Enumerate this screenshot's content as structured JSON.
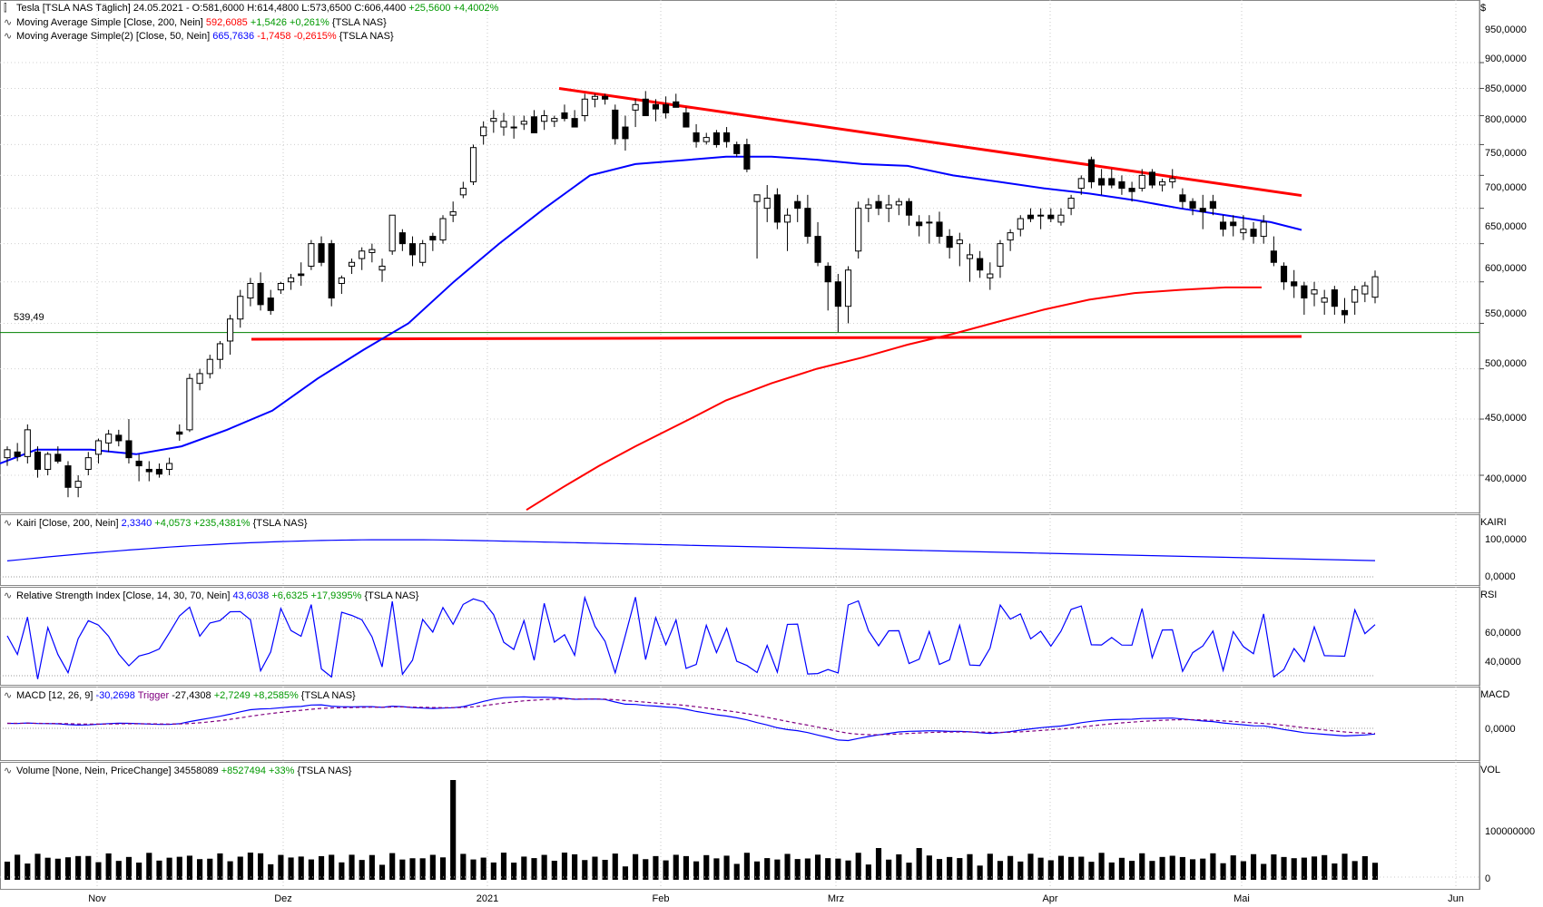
{
  "main_panel": {
    "legend": {
      "symbol": "Tesla",
      "descriptor": "[TSLA NAS  Täglich]",
      "date": "24.05.2021",
      "open": "O:581,6000",
      "high": "H:614,4800",
      "low": "L:573,6500",
      "close": "C:606,4400",
      "change": "+25,5600",
      "change_pct": "+4,4002%"
    },
    "ma200": {
      "label": "Moving Average Simple [Close, 200, Nein]",
      "value": "592,6085",
      "change": "+1,5426",
      "change_pct": "+0,261%",
      "suffix": "{TSLA NAS}"
    },
    "ma50": {
      "label": "Moving Average Simple(2) [Close, 50, Nein]",
      "value": "665,7636",
      "change": "-1,7458",
      "change_pct": "-0,2615%",
      "suffix": "{TSLA NAS}"
    },
    "support_label": "539,49",
    "currency": "$",
    "y_ticks": [
      "950,0000",
      "900,0000",
      "850,0000",
      "800,0000",
      "750,0000",
      "700,0000",
      "650,0000",
      "600,0000",
      "550,0000",
      "500,0000",
      "450,0000",
      "400,0000"
    ]
  },
  "kairi_panel": {
    "label": "Kairi [Close, 200, Nein]",
    "value": "2,3340",
    "change": "+4,0573",
    "change_pct": "+235,4381%",
    "suffix": "{TSLA NAS}",
    "title": "KAIRI",
    "y_ticks": [
      "100,0000",
      "0,0000"
    ]
  },
  "rsi_panel": {
    "label": "Relative Strength Index [Close, 14, 30, 70, Nein]",
    "value": "43,6038",
    "change": "+6,6325",
    "change_pct": "+17,9395%",
    "suffix": "{TSLA NAS}",
    "title": "RSI",
    "y_ticks": [
      "60,0000",
      "40,0000"
    ]
  },
  "macd_panel": {
    "label": "MACD [12, 26, 9]",
    "value": "-30,2698",
    "trigger_label": "Trigger",
    "trigger_value": "-27,4308",
    "change": "+2,7249",
    "change_pct": "+8,2585%",
    "suffix": "{TSLA NAS}",
    "title": "MACD",
    "y_ticks": [
      "0,0000"
    ]
  },
  "volume_panel": {
    "label": "Volume [None, Nein, PriceChange]",
    "value": "34558089",
    "change": "+8527494",
    "change_pct": "+33%",
    "suffix": "{TSLA NAS}",
    "title": "VOL",
    "y_ticks": [
      "100000000",
      "0"
    ]
  },
  "x_axis": {
    "labels": [
      "Nov",
      "Dez",
      "2021",
      "Feb",
      "Mrz",
      "Apr",
      "Mai",
      "Jun"
    ]
  },
  "colors": {
    "ma200": "#ff0000",
    "ma50": "#0000ff",
    "trendline": "#ff0000",
    "support": "#008000",
    "indicator": "#0000ff",
    "trigger": "#800080"
  },
  "chart_data": {
    "type": "candlestick",
    "y_scale": "log",
    "ylim": [
      370,
      985
    ],
    "support_level": 539.49,
    "x_ticks": [
      "Nov",
      "Dez",
      "2021",
      "Feb",
      "Mrz",
      "Apr",
      "Mai",
      "Jun"
    ],
    "ohlc": [
      [
        415,
        425,
        408,
        422
      ],
      [
        420,
        428,
        412,
        416
      ],
      [
        416,
        445,
        410,
        440
      ],
      [
        420,
        425,
        398,
        405
      ],
      [
        405,
        420,
        400,
        418
      ],
      [
        418,
        425,
        410,
        412
      ],
      [
        408,
        412,
        382,
        390
      ],
      [
        390,
        400,
        382,
        395
      ],
      [
        405,
        420,
        400,
        415
      ],
      [
        418,
        432,
        410,
        430
      ],
      [
        428,
        440,
        420,
        436
      ],
      [
        435,
        440,
        425,
        430
      ],
      [
        430,
        450,
        410,
        415
      ],
      [
        412,
        418,
        395,
        408
      ],
      [
        405,
        412,
        395,
        403
      ],
      [
        405,
        410,
        398,
        401
      ],
      [
        405,
        415,
        400,
        410
      ],
      [
        438,
        445,
        430,
        436
      ],
      [
        440,
        495,
        438,
        490
      ],
      [
        485,
        500,
        478,
        495
      ],
      [
        495,
        515,
        490,
        510
      ],
      [
        510,
        530,
        500,
        527
      ],
      [
        530,
        560,
        515,
        555
      ],
      [
        555,
        590,
        545,
        582
      ],
      [
        580,
        605,
        570,
        598
      ],
      [
        598,
        612,
        565,
        572
      ],
      [
        580,
        590,
        560,
        565
      ],
      [
        590,
        600,
        585,
        598
      ],
      [
        600,
        610,
        590,
        605
      ],
      [
        610,
        625,
        595,
        608
      ],
      [
        620,
        655,
        615,
        650
      ],
      [
        650,
        660,
        620,
        625
      ],
      [
        650,
        655,
        570,
        580
      ],
      [
        598,
        608,
        585,
        605
      ],
      [
        620,
        630,
        610,
        625
      ],
      [
        630,
        645,
        615,
        640
      ],
      [
        638,
        650,
        625,
        642
      ],
      [
        615,
        630,
        600,
        620
      ],
      [
        640,
        690,
        635,
        690
      ],
      [
        665,
        670,
        640,
        650
      ],
      [
        650,
        660,
        620,
        635
      ],
      [
        625,
        655,
        620,
        650
      ],
      [
        660,
        665,
        640,
        655
      ],
      [
        655,
        690,
        650,
        685
      ],
      [
        690,
        710,
        680,
        695
      ],
      [
        720,
        740,
        715,
        730
      ],
      [
        740,
        800,
        735,
        795
      ],
      [
        815,
        840,
        800,
        830
      ],
      [
        840,
        860,
        820,
        845
      ],
      [
        830,
        855,
        815,
        840
      ],
      [
        830,
        850,
        810,
        830
      ],
      [
        835,
        850,
        825,
        840
      ],
      [
        848,
        860,
        820,
        820
      ],
      [
        840,
        860,
        825,
        850
      ],
      [
        840,
        850,
        830,
        845
      ],
      [
        855,
        870,
        840,
        845
      ],
      [
        845,
        860,
        830,
        830
      ],
      [
        850,
        890,
        840,
        880
      ],
      [
        880,
        890,
        865,
        885
      ],
      [
        885,
        890,
        870,
        880
      ],
      [
        860,
        870,
        800,
        810
      ],
      [
        830,
        850,
        790,
        810
      ],
      [
        860,
        880,
        830,
        870
      ],
      [
        880,
        895,
        850,
        850
      ],
      [
        870,
        880,
        840,
        862
      ],
      [
        870,
        885,
        845,
        855
      ],
      [
        875,
        890,
        865,
        865
      ],
      [
        855,
        865,
        830,
        830
      ],
      [
        820,
        835,
        795,
        805
      ],
      [
        805,
        820,
        800,
        812
      ],
      [
        820,
        825,
        795,
        800
      ],
      [
        820,
        830,
        795,
        805
      ],
      [
        800,
        805,
        780,
        785
      ],
      [
        800,
        810,
        755,
        760
      ],
      [
        710,
        720,
        630,
        720
      ],
      [
        700,
        735,
        680,
        715
      ],
      [
        720,
        730,
        670,
        680
      ],
      [
        680,
        700,
        640,
        690
      ],
      [
        710,
        720,
        680,
        700
      ],
      [
        700,
        720,
        650,
        660
      ],
      [
        660,
        680,
        620,
        625
      ],
      [
        620,
        625,
        565,
        600
      ],
      [
        600,
        610,
        540,
        570
      ],
      [
        570,
        620,
        550,
        615
      ],
      [
        640,
        710,
        630,
        700
      ],
      [
        700,
        715,
        680,
        705
      ],
      [
        710,
        720,
        690,
        700
      ],
      [
        700,
        720,
        680,
        705
      ],
      [
        705,
        715,
        690,
        710
      ],
      [
        710,
        715,
        675,
        690
      ],
      [
        680,
        690,
        660,
        675
      ],
      [
        680,
        690,
        650,
        680
      ],
      [
        680,
        695,
        650,
        660
      ],
      [
        660,
        670,
        630,
        645
      ],
      [
        650,
        665,
        620,
        655
      ],
      [
        630,
        650,
        600,
        635
      ],
      [
        630,
        640,
        605,
        615
      ],
      [
        605,
        625,
        590,
        610
      ],
      [
        620,
        655,
        605,
        650
      ],
      [
        655,
        670,
        640,
        665
      ],
      [
        670,
        690,
        660,
        685
      ],
      [
        690,
        700,
        680,
        685
      ],
      [
        690,
        700,
        670,
        690
      ],
      [
        690,
        700,
        680,
        685
      ],
      [
        680,
        700,
        675,
        690
      ],
      [
        700,
        720,
        690,
        715
      ],
      [
        730,
        750,
        720,
        745
      ],
      [
        775,
        780,
        730,
        740
      ],
      [
        745,
        760,
        720,
        735
      ],
      [
        745,
        760,
        730,
        735
      ],
      [
        740,
        750,
        720,
        730
      ],
      [
        730,
        740,
        710,
        725
      ],
      [
        730,
        760,
        725,
        750
      ],
      [
        755,
        760,
        730,
        735
      ],
      [
        735,
        745,
        725,
        740
      ],
      [
        740,
        760,
        730,
        745
      ],
      [
        720,
        730,
        700,
        710
      ],
      [
        710,
        715,
        690,
        700
      ],
      [
        700,
        720,
        670,
        695
      ],
      [
        710,
        720,
        690,
        700
      ],
      [
        680,
        690,
        660,
        670
      ],
      [
        680,
        690,
        660,
        675
      ],
      [
        665,
        690,
        655,
        670
      ],
      [
        670,
        680,
        650,
        660
      ],
      [
        660,
        690,
        650,
        680
      ],
      [
        640,
        660,
        620,
        625
      ],
      [
        620,
        625,
        590,
        600
      ],
      [
        600,
        615,
        580,
        595
      ],
      [
        595,
        600,
        560,
        580
      ],
      [
        585,
        600,
        570,
        590
      ],
      [
        575,
        590,
        560,
        580
      ],
      [
        590,
        595,
        560,
        570
      ],
      [
        565,
        580,
        550,
        560
      ],
      [
        575,
        595,
        560,
        590
      ],
      [
        585,
        600,
        575,
        595
      ],
      [
        581,
        614.48,
        573.65,
        606.44
      ]
    ],
    "ma50": [
      [
        0,
        410
      ],
      [
        40,
        422
      ],
      [
        100,
        422
      ],
      [
        150,
        418
      ],
      [
        200,
        425
      ],
      [
        250,
        440
      ],
      [
        300,
        458
      ],
      [
        350,
        490
      ],
      [
        400,
        520
      ],
      [
        450,
        550
      ],
      [
        500,
        600
      ],
      [
        550,
        650
      ],
      [
        600,
        700
      ],
      [
        650,
        750
      ],
      [
        700,
        768
      ],
      [
        760,
        775
      ],
      [
        800,
        780
      ],
      [
        850,
        780
      ],
      [
        900,
        775
      ],
      [
        950,
        768
      ],
      [
        1000,
        765
      ],
      [
        1050,
        750
      ],
      [
        1100,
        740
      ],
      [
        1150,
        730
      ],
      [
        1200,
        722
      ],
      [
        1250,
        712
      ],
      [
        1300,
        700
      ],
      [
        1350,
        690
      ],
      [
        1400,
        680
      ],
      [
        1434,
        669
      ]
    ],
    "ma200": [
      [
        580,
        372
      ],
      [
        620,
        390
      ],
      [
        660,
        408
      ],
      [
        700,
        425
      ],
      [
        760,
        450
      ],
      [
        800,
        468
      ],
      [
        850,
        485
      ],
      [
        900,
        500
      ],
      [
        950,
        512
      ],
      [
        1000,
        526
      ],
      [
        1050,
        538
      ],
      [
        1100,
        552
      ],
      [
        1150,
        566
      ],
      [
        1200,
        578
      ],
      [
        1250,
        586
      ],
      [
        1300,
        590
      ],
      [
        1350,
        593
      ],
      [
        1390,
        593
      ]
    ],
    "trendline_upper": [
      [
        616,
        900
      ],
      [
        1434,
        719
      ]
    ],
    "trendline_lower": [
      [
        277,
        532
      ],
      [
        1434,
        535
      ]
    ],
    "volume_series_name": "Volume"
  }
}
